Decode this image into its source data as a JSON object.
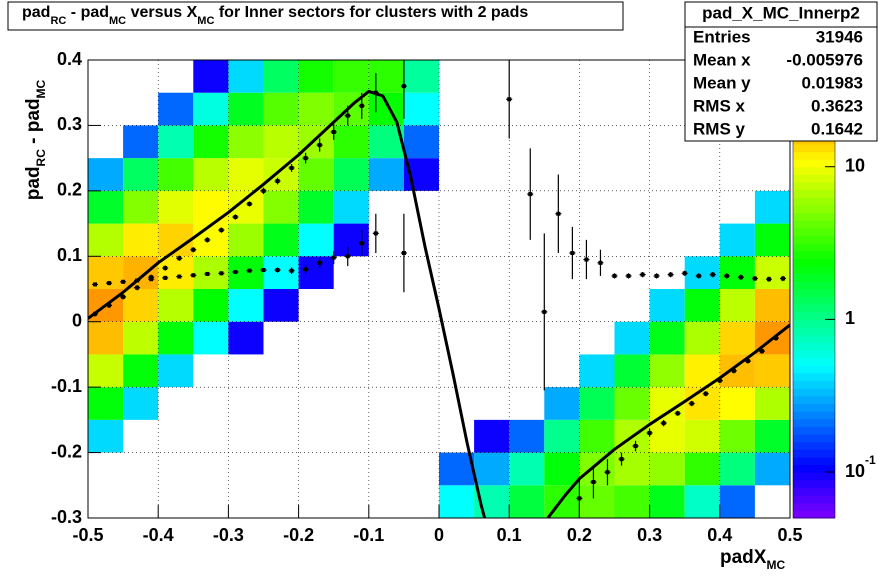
{
  "chart_data": {
    "type": "heatmap",
    "title": [
      "pad",
      "RC",
      " - pad",
      "MC",
      " versus X",
      "MC",
      " for Inner sectors for clusters with 2 pads"
    ],
    "xlabel": [
      "padX",
      "MC"
    ],
    "ylabel": [
      "pad",
      "RC",
      " - pad",
      "MC"
    ],
    "xlim": [
      -0.5,
      0.5
    ],
    "ylim": [
      -0.3,
      0.4
    ],
    "xticks": [
      -0.5,
      -0.4,
      -0.3,
      -0.2,
      -0.1,
      0,
      0.1,
      0.2,
      0.3,
      0.4,
      0.5
    ],
    "yticks": [
      -0.3,
      -0.2,
      -0.1,
      0,
      0.1,
      0.2,
      0.3,
      0.4
    ],
    "grid": true,
    "zlim": [
      0.05,
      50
    ],
    "zlog": true,
    "zticks": [
      10,
      1,
      {
        "value": 0.1,
        "label": "10",
        "exponent": "-1"
      }
    ],
    "xbins": [
      -0.5,
      -0.45,
      -0.4,
      -0.35,
      -0.3,
      -0.25,
      -0.2,
      -0.15,
      -0.1,
      -0.05,
      0,
      0.05,
      0.1,
      0.15,
      0.2,
      0.25,
      0.3,
      0.35,
      0.4,
      0.45,
      0.5
    ],
    "ybins": [
      -0.3,
      -0.25,
      -0.2,
      -0.15,
      -0.1,
      -0.05,
      0,
      0.05,
      0.1,
      0.15,
      0.2,
      0.25,
      0.3,
      0.35,
      0.4
    ],
    "z": [
      [
        null,
        null,
        null,
        null,
        null,
        null,
        null,
        null,
        null,
        null,
        0.5,
        0.8,
        1.6,
        3,
        4.3,
        3.5,
        2,
        0.7,
        0.2,
        null
      ],
      [
        null,
        null,
        null,
        null,
        null,
        null,
        null,
        null,
        null,
        null,
        0.2,
        0.3,
        0.8,
        2.2,
        5,
        6.3,
        5.6,
        3.1,
        1.1,
        0.3
      ],
      [
        0.4,
        null,
        null,
        null,
        null,
        null,
        null,
        null,
        null,
        null,
        null,
        0.1,
        0.2,
        1,
        3.4,
        6.7,
        9.4,
        8.1,
        4.5,
        1.8
      ],
      [
        2.2,
        0.4,
        null,
        null,
        null,
        null,
        null,
        null,
        null,
        null,
        null,
        null,
        null,
        0.3,
        1.4,
        4.4,
        9.4,
        12.6,
        10.9,
        6.6
      ],
      [
        7.6,
        2.2,
        0.4,
        null,
        null,
        null,
        null,
        null,
        null,
        null,
        null,
        null,
        null,
        null,
        0.4,
        1.7,
        5.6,
        11.7,
        15.8,
        14.8
      ],
      [
        16,
        7.3,
        2.2,
        0.5,
        0.1,
        null,
        null,
        null,
        null,
        null,
        null,
        null,
        null,
        null,
        null,
        0.4,
        2,
        6.5,
        13.8,
        20
      ],
      [
        20,
        14,
        6.9,
        2.3,
        0.5,
        0.1,
        null,
        null,
        null,
        null,
        null,
        null,
        null,
        null,
        null,
        null,
        0.4,
        2.2,
        7.2,
        16
      ],
      [
        15,
        17,
        12,
        6.5,
        2.2,
        0.5,
        0.1,
        null,
        null,
        null,
        null,
        null,
        null,
        null,
        null,
        null,
        null,
        0.4,
        2.2,
        7.8
      ],
      [
        6.8,
        12,
        14,
        11,
        5.9,
        2,
        0.5,
        0.1,
        null,
        null,
        null,
        null,
        null,
        null,
        null,
        null,
        null,
        null,
        0.4,
        2.2
      ],
      [
        1.8,
        5.1,
        9,
        11,
        9.5,
        5.1,
        1.8,
        0.4,
        null,
        null,
        null,
        null,
        null,
        null,
        null,
        null,
        null,
        null,
        null,
        0.4
      ],
      [
        0.3,
        1.3,
        3.5,
        7.1,
        9.2,
        7.8,
        4.2,
        1.4,
        0.3,
        0.1,
        null,
        null,
        null,
        null,
        null,
        null,
        null,
        null,
        null,
        null
      ],
      [
        null,
        0.2,
        0.8,
        2.6,
        5.4,
        7.1,
        5.9,
        3,
        1.1,
        0.2,
        null,
        null,
        null,
        null,
        null,
        null,
        null,
        null,
        null,
        null
      ],
      [
        null,
        null,
        0.2,
        0.6,
        1.9,
        3.9,
        5,
        4,
        2.4,
        0.5,
        null,
        null,
        null,
        null,
        null,
        null,
        null,
        null,
        null,
        null
      ],
      [
        null,
        null,
        null,
        0.1,
        0.4,
        1.3,
        2.6,
        3.2,
        3,
        0.9,
        null,
        null,
        null,
        null,
        null,
        null,
        null,
        null,
        null,
        null
      ]
    ],
    "profiles": [
      {
        "x": [
          -0.49,
          -0.47,
          -0.45,
          -0.43,
          -0.41,
          -0.39,
          -0.37,
          -0.35,
          -0.33,
          -0.31,
          -0.29,
          -0.27,
          -0.25,
          -0.23,
          -0.21,
          -0.19,
          -0.17,
          -0.15,
          -0.13,
          -0.11,
          -0.09,
          -0.05,
          0.1,
          0.13,
          0.15,
          0.17,
          0.19,
          0.21,
          0.23,
          0.25,
          0.27,
          0.29,
          0.31,
          0.33,
          0.35,
          0.37,
          0.39,
          0.41,
          0.43,
          0.45,
          0.47,
          0.49
        ],
        "y": [
          0.057,
          0.059,
          0.061,
          0.063,
          0.065,
          0.067,
          0.069,
          0.071,
          0.073,
          0.074,
          0.076,
          0.078,
          0.079,
          0.079,
          0.078,
          0.08,
          0.09,
          0.098,
          0.1,
          0.12,
          0.135,
          0.105,
          0.34,
          0.195,
          0.015,
          0.165,
          0.105,
          0.095,
          0.09,
          0.07,
          0.07,
          0.072,
          0.07,
          0.072,
          0.074,
          0.07,
          0.072,
          0.07,
          0.068,
          0.066,
          0.065,
          0.066
        ],
        "err": [
          0.003,
          0.003,
          0.003,
          0.003,
          0.003,
          0.003,
          0.003,
          0.003,
          0.003,
          0.003,
          0.003,
          0.003,
          0.003,
          0.004,
          0.005,
          0.006,
          0.008,
          0.01,
          0.015,
          0.02,
          0.03,
          0.06,
          0.06,
          0.07,
          0.12,
          0.06,
          0.04,
          0.03,
          0.02,
          0.004,
          0.004,
          0.004,
          0.004,
          0.004,
          0.004,
          0.004,
          0.004,
          0.004,
          0.004,
          0.004,
          0.004,
          0.004
        ]
      },
      {
        "x": [
          -0.49,
          -0.47,
          -0.45,
          -0.43,
          -0.41,
          -0.39,
          -0.37,
          -0.35,
          -0.33,
          -0.31,
          -0.29,
          -0.27,
          -0.25,
          -0.23,
          -0.21,
          -0.19,
          -0.17,
          -0.15,
          -0.13,
          -0.11,
          -0.09,
          -0.05,
          0.2,
          0.22,
          0.24,
          0.26,
          0.28,
          0.3,
          0.32,
          0.34,
          0.36,
          0.38,
          0.4,
          0.42,
          0.44,
          0.46,
          0.48
        ],
        "y": [
          0.012,
          0.025,
          0.038,
          0.052,
          0.068,
          0.082,
          0.097,
          0.11,
          0.125,
          0.14,
          0.16,
          0.18,
          0.2,
          0.215,
          0.235,
          0.25,
          0.27,
          0.29,
          0.315,
          0.33,
          0.35,
          0.36,
          -0.27,
          -0.245,
          -0.23,
          -0.21,
          -0.19,
          -0.17,
          -0.155,
          -0.14,
          -0.125,
          -0.11,
          -0.09,
          -0.075,
          -0.06,
          -0.045,
          -0.025
        ],
        "err": [
          0.004,
          0.004,
          0.004,
          0.004,
          0.004,
          0.004,
          0.004,
          0.004,
          0.004,
          0.004,
          0.004,
          0.004,
          0.005,
          0.005,
          0.006,
          0.008,
          0.01,
          0.012,
          0.015,
          0.02,
          0.03,
          0.05,
          0.03,
          0.025,
          0.02,
          0.01,
          0.008,
          0.006,
          0.005,
          0.004,
          0.004,
          0.004,
          0.004,
          0.004,
          0.004,
          0.004,
          0.004
        ]
      }
    ],
    "fit": {
      "x": [
        -0.5,
        -0.45,
        -0.4,
        -0.35,
        -0.3,
        -0.25,
        -0.2,
        -0.15,
        -0.12,
        -0.1,
        -0.08,
        -0.06,
        -0.04,
        -0.02,
        0,
        0.02,
        0.04,
        0.06,
        0.065,
        0.11,
        0.155,
        0.18,
        0.2,
        0.25,
        0.3,
        0.35,
        0.4,
        0.45,
        0.5
      ],
      "y": [
        0.005,
        0.045,
        0.09,
        0.128,
        0.167,
        0.21,
        0.255,
        0.305,
        0.335,
        0.352,
        0.345,
        0.305,
        0.22,
        0.115,
        0.02,
        -0.08,
        -0.185,
        -0.28,
        -0.3,
        null,
        -0.3,
        -0.265,
        -0.24,
        -0.195,
        -0.157,
        -0.122,
        -0.086,
        -0.047,
        -0.005
      ]
    },
    "stats": {
      "title": "pad_X_MC_Innerp2",
      "rows": [
        [
          "Entries",
          31946
        ],
        [
          "Mean x",
          -0.005976
        ],
        [
          "Mean y",
          0.01983
        ],
        [
          "RMS x",
          0.3623
        ],
        [
          "RMS y",
          0.1642
        ]
      ]
    }
  }
}
